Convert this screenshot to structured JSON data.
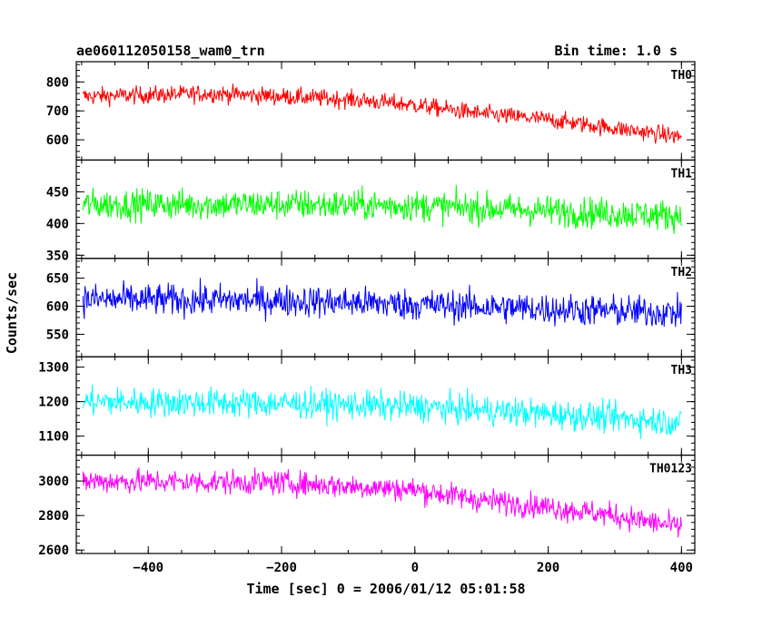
{
  "header": {
    "title": "ae060112050158_wam0_trn",
    "bin_time": "Bin time: 1.0 s"
  },
  "chart_data": {
    "type": "line",
    "title": "ae060112050158_wam0_trn",
    "xlabel": "Time [sec] 0 = 2006/01/12 05:01:58",
    "ylabel": "Counts/sec",
    "xlim": [
      -508,
      420
    ],
    "x_ticks": [
      -400,
      -200,
      0,
      200,
      400
    ],
    "x_tick_labels": [
      "−400",
      "−200",
      "0",
      "200",
      "400"
    ],
    "bin_time_s": 1.0,
    "x_range": [
      -498,
      400
    ],
    "panels": [
      {
        "name": "TH0",
        "color": "#ff0000",
        "ylim": [
          530,
          870
        ],
        "y_ticks": [
          600,
          700,
          800
        ],
        "trend": [
          [
            -498,
            750
          ],
          [
            -300,
            760
          ],
          [
            -100,
            740
          ],
          [
            0,
            720
          ],
          [
            100,
            690
          ],
          [
            200,
            670
          ],
          [
            300,
            640
          ],
          [
            400,
            610
          ]
        ],
        "noise": 30
      },
      {
        "name": "TH1",
        "color": "#00ff00",
        "ylim": [
          345,
          500
        ],
        "y_ticks": [
          350,
          400,
          450
        ],
        "trend": [
          [
            -498,
            430
          ],
          [
            -200,
            430
          ],
          [
            0,
            428
          ],
          [
            200,
            420
          ],
          [
            400,
            412
          ]
        ],
        "noise": 24
      },
      {
        "name": "TH2",
        "color": "#0000ff",
        "ylim": [
          510,
          685
        ],
        "y_ticks": [
          550,
          600,
          650
        ],
        "trend": [
          [
            -498,
            612
          ],
          [
            -200,
            610
          ],
          [
            0,
            603
          ],
          [
            200,
            595
          ],
          [
            400,
            588
          ]
        ],
        "noise": 28
      },
      {
        "name": "TH3",
        "color": "#00ffff",
        "ylim": [
          1045,
          1330
        ],
        "y_ticks": [
          1100,
          1200,
          1300
        ],
        "trend": [
          [
            -498,
            1200
          ],
          [
            -200,
            1195
          ],
          [
            0,
            1185
          ],
          [
            200,
            1165
          ],
          [
            400,
            1140
          ]
        ],
        "noise": 42
      },
      {
        "name": "TH0123",
        "color": "#ff00ff",
        "ylim": [
          2580,
          3150
        ],
        "y_ticks": [
          2600,
          2800,
          3000
        ],
        "trend": [
          [
            -498,
            3000
          ],
          [
            -200,
            2990
          ],
          [
            0,
            2950
          ],
          [
            100,
            2890
          ],
          [
            200,
            2850
          ],
          [
            300,
            2800
          ],
          [
            400,
            2730
          ]
        ],
        "noise": 70
      }
    ]
  }
}
